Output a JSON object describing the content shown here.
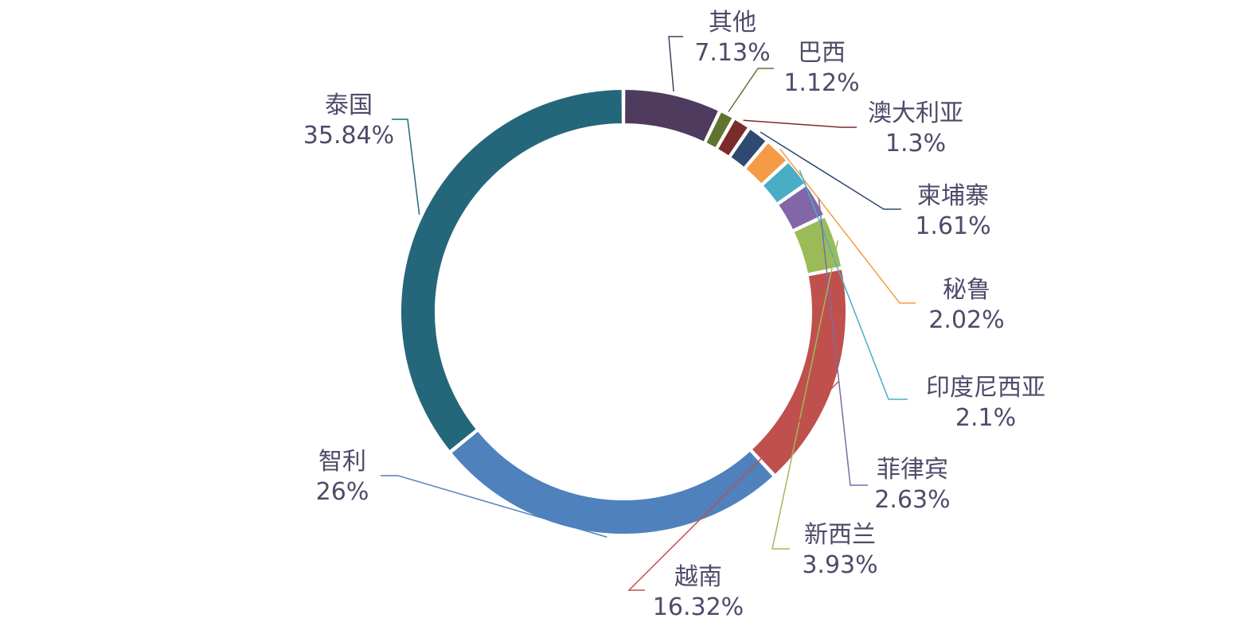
{
  "chart_data": {
    "type": "pie",
    "variant": "donut",
    "title": "",
    "legend": "none",
    "slices": [
      {
        "name": "其他",
        "value": 7.13,
        "label": "7.13%",
        "color": "#4f3b5e"
      },
      {
        "name": "巴西",
        "value": 1.12,
        "label": "1.12%",
        "color": "#5f7430"
      },
      {
        "name": "澳大利亚",
        "value": 1.3,
        "label": "1.3%",
        "color": "#7a2b2b"
      },
      {
        "name": "柬埔寨",
        "value": 1.61,
        "label": "1.61%",
        "color": "#2e4a72"
      },
      {
        "name": "秘鲁",
        "value": 2.02,
        "label": "2.02%",
        "color": "#f59a45"
      },
      {
        "name": "印度尼西亚",
        "value": 2.1,
        "label": "2.1%",
        "color": "#49adc6"
      },
      {
        "name": "菲律宾",
        "value": 2.63,
        "label": "2.63%",
        "color": "#8267a8"
      },
      {
        "name": "新西兰",
        "value": 3.93,
        "label": "3.93%",
        "color": "#9bbb59"
      },
      {
        "name": "越南",
        "value": 16.32,
        "label": "16.32%",
        "color": "#c0504d"
      },
      {
        "name": "智利",
        "value": 26,
        "label": "26%",
        "color": "#4f81bd"
      },
      {
        "name": "泰国",
        "value": 35.84,
        "label": "35.84%",
        "color": "#25677a"
      }
    ]
  }
}
